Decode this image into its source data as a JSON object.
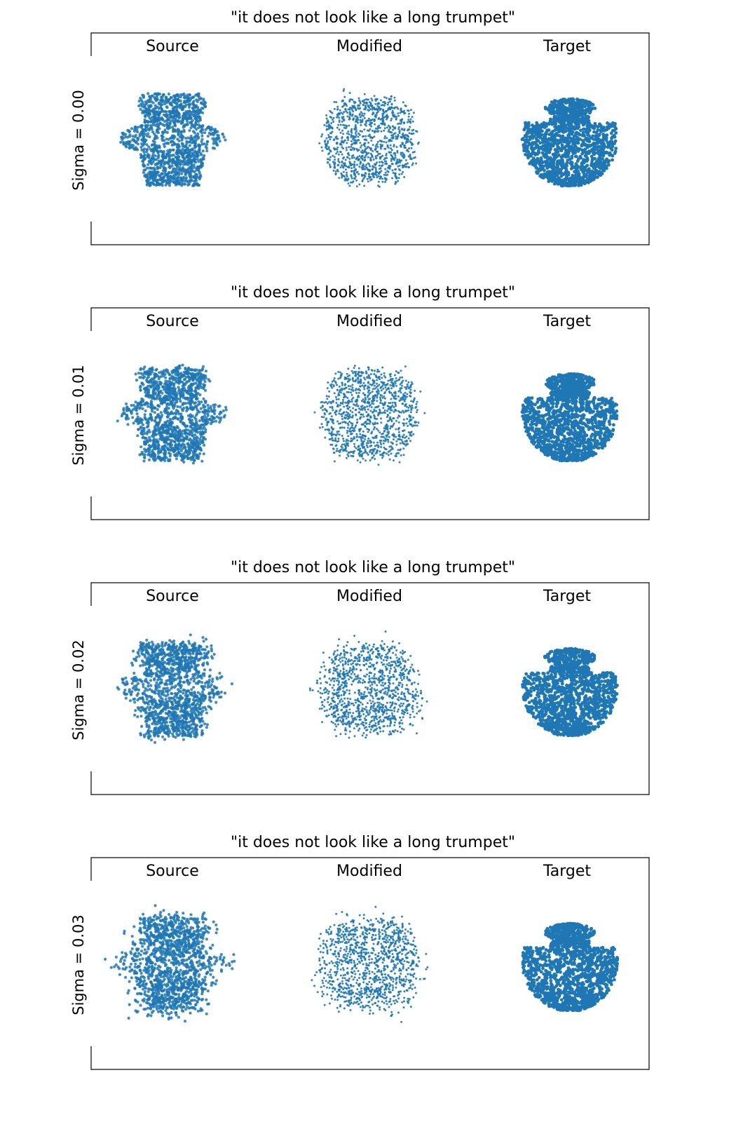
{
  "colors": {
    "points": "#1f77b4"
  },
  "figure": {
    "column_labels": [
      "Source",
      "Modified",
      "Target"
    ]
  },
  "chart_data": [
    {
      "type": "scatter",
      "title": "\"it does not look like a long trumpet\"",
      "ylabel": "Sigma = 0.00",
      "sigma": 0.0,
      "columns": [
        "Source",
        "Modified",
        "Target"
      ],
      "axes_ticks": false
    },
    {
      "type": "scatter",
      "title": "\"it does not look like a long trumpet\"",
      "ylabel": "Sigma = 0.01",
      "sigma": 0.01,
      "columns": [
        "Source",
        "Modified",
        "Target"
      ],
      "axes_ticks": false
    },
    {
      "type": "scatter",
      "title": "\"it does not look like a long trumpet\"",
      "ylabel": "Sigma = 0.02",
      "sigma": 0.02,
      "columns": [
        "Source",
        "Modified",
        "Target"
      ],
      "axes_ticks": false
    },
    {
      "type": "scatter",
      "title": "\"it does not look like a long trumpet\"",
      "ylabel": "Sigma = 0.03",
      "sigma": 0.03,
      "columns": [
        "Source",
        "Modified",
        "Target"
      ],
      "axes_ticks": false
    }
  ]
}
